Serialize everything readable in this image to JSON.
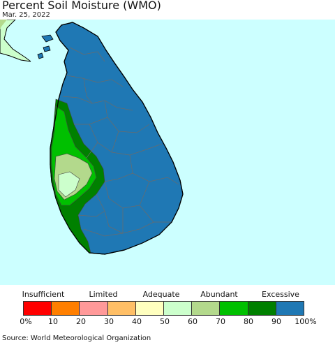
{
  "header": {
    "title": "Percent Soil Moisture (WMO)",
    "date": "Mar. 25, 2022"
  },
  "legend": {
    "categories": [
      "Insufficient",
      "Limited",
      "Adequate",
      "Abundant",
      "Excessive"
    ],
    "ticks": [
      "0%",
      "10",
      "20",
      "30",
      "40",
      "50",
      "60",
      "70",
      "80",
      "90",
      "100%"
    ],
    "colors": [
      "#ff0000",
      "#ff7f00",
      "#ff9999",
      "#ffbf66",
      "#ffffbf",
      "#ccffcc",
      "#b3d98c",
      "#00c000",
      "#008000",
      "#1f78b4"
    ]
  },
  "map_colors": {
    "ocean": "#ccffff",
    "mainland_india": "#ccffcc",
    "dominant_class": "#1f78b4"
  },
  "source": "Source: World Meteorological Organization"
}
